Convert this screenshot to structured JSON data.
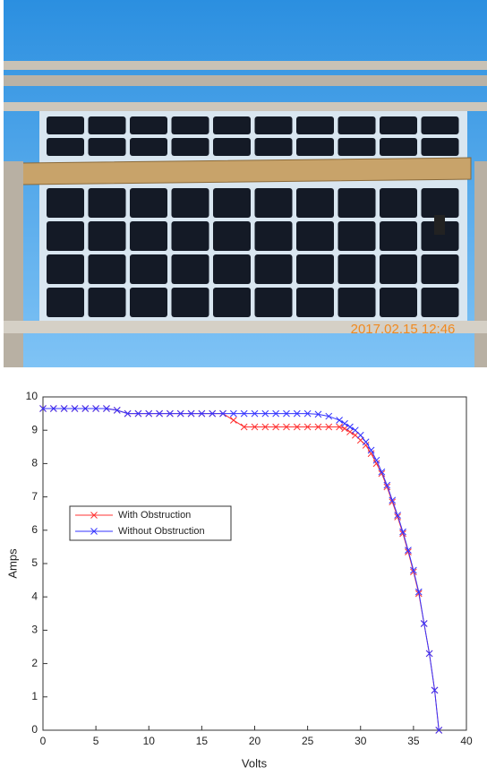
{
  "photo": {
    "timestamp": "2017.02.15 12:46"
  },
  "chart_data": {
    "type": "line",
    "xlabel": "Volts",
    "ylabel": "Amps",
    "x": [
      0,
      1,
      2,
      3,
      4,
      5,
      6,
      7,
      8,
      9,
      10,
      11,
      12,
      13,
      14,
      15,
      16,
      17,
      18,
      19,
      20,
      21,
      22,
      23,
      24,
      25,
      26,
      27,
      28,
      28.5,
      29,
      29.5,
      30,
      30.5,
      31,
      31.5,
      32,
      32.5,
      33,
      33.5,
      34,
      34.5,
      35,
      35.5,
      36,
      36.5,
      37,
      37.4
    ],
    "series": [
      {
        "name": "With Obstruction",
        "color": "#ff3333",
        "values": [
          9.65,
          9.65,
          9.65,
          9.65,
          9.65,
          9.65,
          9.65,
          9.6,
          9.5,
          9.5,
          9.5,
          9.5,
          9.5,
          9.5,
          9.5,
          9.5,
          9.5,
          9.5,
          9.3,
          9.1,
          9.1,
          9.1,
          9.1,
          9.1,
          9.1,
          9.1,
          9.1,
          9.1,
          9.1,
          9.05,
          8.95,
          8.85,
          8.7,
          8.55,
          8.3,
          8.0,
          7.7,
          7.3,
          6.85,
          6.4,
          5.9,
          5.35,
          4.75,
          4.1,
          3.2,
          2.3,
          1.2,
          0
        ]
      },
      {
        "name": "Without Obstruction",
        "color": "#3333ff",
        "values": [
          9.65,
          9.65,
          9.65,
          9.65,
          9.65,
          9.65,
          9.65,
          9.6,
          9.5,
          9.5,
          9.5,
          9.5,
          9.5,
          9.5,
          9.5,
          9.5,
          9.5,
          9.5,
          9.5,
          9.5,
          9.5,
          9.5,
          9.5,
          9.5,
          9.5,
          9.5,
          9.48,
          9.42,
          9.3,
          9.2,
          9.1,
          9.0,
          8.85,
          8.65,
          8.4,
          8.1,
          7.75,
          7.35,
          6.9,
          6.45,
          5.95,
          5.4,
          4.8,
          4.15,
          3.2,
          2.3,
          1.2,
          0
        ]
      }
    ],
    "xlim": [
      0,
      40
    ],
    "xticks": [
      0,
      5,
      10,
      15,
      20,
      25,
      30,
      35,
      40
    ],
    "ylim": [
      0,
      10
    ],
    "yticks": [
      0,
      1,
      2,
      3,
      4,
      5,
      6,
      7,
      8,
      9,
      10
    ],
    "legend": "left",
    "marker": "x"
  }
}
